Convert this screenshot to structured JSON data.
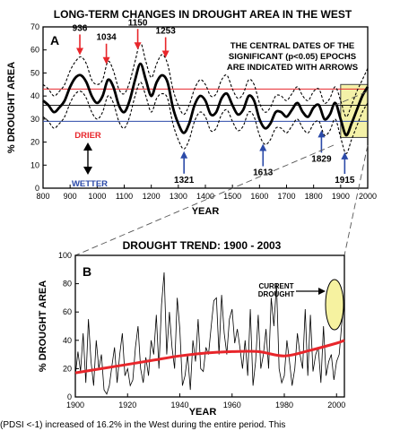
{
  "chart_data": [
    {
      "type": "line",
      "panel": "A",
      "title": "LONG-TERM CHANGES IN DROUGHT AREA IN THE WEST",
      "xlabel": "YEAR",
      "ylabel": "% DROUGHT AREA",
      "xlim": [
        800,
        2000
      ],
      "ylim": [
        0,
        70
      ],
      "xticks": [
        "800",
        "900",
        "1000",
        "1100",
        "1200",
        "1300",
        "1400",
        "1500",
        "1600",
        "1700",
        "1800",
        "1900",
        "2000"
      ],
      "yticks": [
        "0",
        "10",
        "20",
        "30",
        "40",
        "50",
        "60",
        "70"
      ],
      "grid": false,
      "mean": 36,
      "x": [
        800,
        820,
        840,
        860,
        880,
        900,
        920,
        940,
        960,
        980,
        1000,
        1020,
        1040,
        1060,
        1080,
        1100,
        1120,
        1140,
        1160,
        1180,
        1200,
        1220,
        1240,
        1260,
        1280,
        1300,
        1320,
        1340,
        1360,
        1380,
        1400,
        1420,
        1440,
        1460,
        1480,
        1500,
        1520,
        1540,
        1560,
        1580,
        1600,
        1620,
        1640,
        1660,
        1680,
        1700,
        1720,
        1740,
        1760,
        1780,
        1800,
        1820,
        1840,
        1860,
        1880,
        1900,
        1920,
        1940,
        1960,
        1980,
        2000
      ],
      "series": [
        {
          "name": "smoothed",
          "values": [
            38,
            36,
            33,
            35,
            38,
            44,
            48,
            49,
            46,
            40,
            37,
            40,
            47,
            44,
            36,
            33,
            38,
            47,
            54,
            47,
            40,
            46,
            49,
            46,
            35,
            28,
            24,
            28,
            36,
            40,
            38,
            32,
            33,
            39,
            41,
            36,
            32,
            34,
            40,
            38,
            30,
            26,
            28,
            33,
            33,
            31,
            34,
            37,
            33,
            31,
            35,
            36,
            30,
            32,
            37,
            30,
            23,
            28,
            34,
            40,
            44
          ]
        },
        {
          "name": "upper",
          "values": [
            45,
            43,
            40,
            42,
            45,
            51,
            55,
            57,
            54,
            47,
            45,
            47,
            55,
            51,
            43,
            41,
            46,
            55,
            63,
            55,
            48,
            54,
            58,
            54,
            43,
            36,
            32,
            36,
            43,
            47,
            45,
            40,
            41,
            47,
            49,
            43,
            39,
            41,
            47,
            45,
            37,
            33,
            35,
            40,
            40,
            38,
            41,
            44,
            40,
            38,
            42,
            43,
            37,
            39,
            44,
            38,
            31,
            36,
            42,
            47,
            52
          ]
        },
        {
          "name": "lower",
          "values": [
            31,
            29,
            26,
            28,
            31,
            37,
            41,
            42,
            39,
            33,
            30,
            33,
            40,
            37,
            29,
            26,
            31,
            40,
            46,
            40,
            33,
            39,
            41,
            39,
            28,
            21,
            17,
            21,
            29,
            33,
            31,
            25,
            26,
            32,
            34,
            29,
            25,
            27,
            33,
            31,
            23,
            19,
            21,
            26,
            26,
            24,
            27,
            30,
            26,
            24,
            28,
            29,
            23,
            25,
            30,
            22,
            15,
            21,
            27,
            33,
            37
          ]
        }
      ],
      "drier_label": "DRIER",
      "wetter_label": "WETTER",
      "epoch_note": [
        "THE CENTRAL DATES OF THE",
        "SIGNIFICANT (p<0.05) EPOCHS",
        "ARE INDICATED WITH ARROWS"
      ],
      "drier_epochs": [
        936,
        1034,
        1150,
        1253
      ],
      "wetter_epochs": [
        1321,
        1613,
        1829,
        1915
      ],
      "drier_epoch_labels": [
        "936",
        "1034",
        "1150",
        "1253"
      ],
      "wetter_epoch_labels": [
        "1321",
        "1613",
        "1829",
        "1915"
      ],
      "colors": {
        "drier": "#e8262b",
        "wetter": "#2b4aa8",
        "highlight": "#f4f1a8"
      }
    },
    {
      "type": "line",
      "panel": "B",
      "title": "DROUGHT TREND:  1900 - 2003",
      "xlabel": "YEAR",
      "ylabel": "% DROUGHT AREA",
      "xlim": [
        1900,
        2003
      ],
      "ylim": [
        0,
        100
      ],
      "xticks": [
        "1900",
        "1920",
        "1940",
        "1960",
        "1980",
        "2000"
      ],
      "yticks": [
        "0",
        "20",
        "40",
        "60",
        "80",
        "100"
      ],
      "grid": false,
      "annotation": [
        "CURRENT",
        "DROUGHT"
      ],
      "series": [
        {
          "name": "annual",
          "years_start": 1900,
          "values": [
            15,
            32,
            18,
            45,
            10,
            55,
            25,
            8,
            40,
            20,
            30,
            5,
            2,
            8,
            22,
            35,
            10,
            30,
            45,
            15,
            20,
            8,
            12,
            35,
            50,
            20,
            10,
            28,
            15,
            40,
            30,
            58,
            20,
            65,
            88,
            30,
            60,
            35,
            20,
            70,
            48,
            8,
            15,
            30,
            5,
            40,
            25,
            55,
            20,
            18,
            35,
            30,
            50,
            68,
            70,
            30,
            72,
            45,
            30,
            55,
            62,
            38,
            48,
            35,
            20,
            40,
            15,
            62,
            8,
            25,
            58,
            20,
            30,
            48,
            20,
            70,
            50,
            80,
            20,
            10,
            15,
            40,
            25,
            8,
            20,
            45,
            30,
            20,
            62,
            15,
            58,
            18,
            30,
            35,
            10,
            50,
            15,
            25,
            30,
            12,
            25,
            30,
            52,
            66
          ]
        },
        {
          "name": "trend",
          "x": [
            1900,
            1910,
            1920,
            1930,
            1940,
            1950,
            1960,
            1970,
            1980,
            1990,
            2000,
            2003
          ],
          "values": [
            17,
            20,
            23,
            26,
            29,
            31,
            32,
            32,
            29,
            33,
            38,
            40
          ]
        }
      ],
      "colors": {
        "annual": "#000000",
        "trend": "#e8262b",
        "oval": "#f6f2a0"
      }
    }
  ],
  "caption": "(PDSI <-1) increased of 16.2% in the West during the entire period. This"
}
